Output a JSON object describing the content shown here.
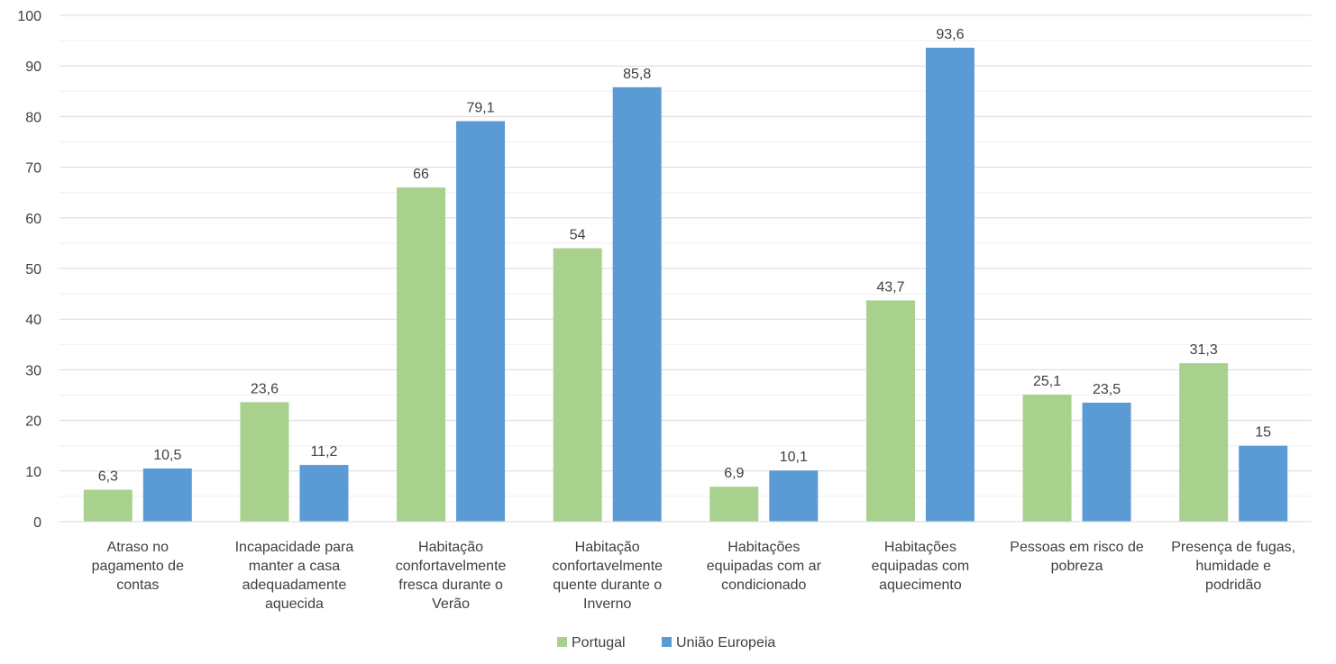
{
  "chart_data": {
    "type": "bar",
    "title": "",
    "xlabel": "",
    "ylabel": "",
    "ylim": [
      0,
      100
    ],
    "yticks": [
      0,
      10,
      20,
      30,
      40,
      50,
      60,
      70,
      80,
      90,
      100
    ],
    "grid": true,
    "legend_position": "bottom",
    "categories": [
      [
        "Atraso no",
        "pagamento de",
        "contas"
      ],
      [
        "Incapacidade para",
        "manter a casa",
        "adequadamente",
        "aquecida"
      ],
      [
        "Habitação",
        "confortavelmente",
        "fresca durante o",
        "Verão"
      ],
      [
        "Habitação",
        "confortavelmente",
        "quente durante o",
        "Inverno"
      ],
      [
        "Habitações",
        "equipadas com ar",
        "condicionado"
      ],
      [
        "Habitações",
        "equipadas com",
        "aquecimento"
      ],
      [
        "Pessoas em risco de",
        "pobreza"
      ],
      [
        "Presença de fugas,",
        "humidade e",
        "podridão"
      ]
    ],
    "series": [
      {
        "name": "Portugal",
        "color": "#a9d18e",
        "values": [
          6.3,
          23.6,
          66,
          54,
          6.9,
          43.7,
          25.1,
          31.3
        ],
        "labels": [
          "6,3",
          "23,6",
          "66",
          "54",
          "6,9",
          "43,7",
          "25,1",
          "31,3"
        ]
      },
      {
        "name": "União Europeia",
        "color": "#5b9bd5",
        "values": [
          10.5,
          11.2,
          79.1,
          85.8,
          10.1,
          93.6,
          23.5,
          15
        ],
        "labels": [
          "10,5",
          "11,2",
          "79,1",
          "85,8",
          "10,1",
          "93,6",
          "23,5",
          "15"
        ]
      }
    ]
  }
}
